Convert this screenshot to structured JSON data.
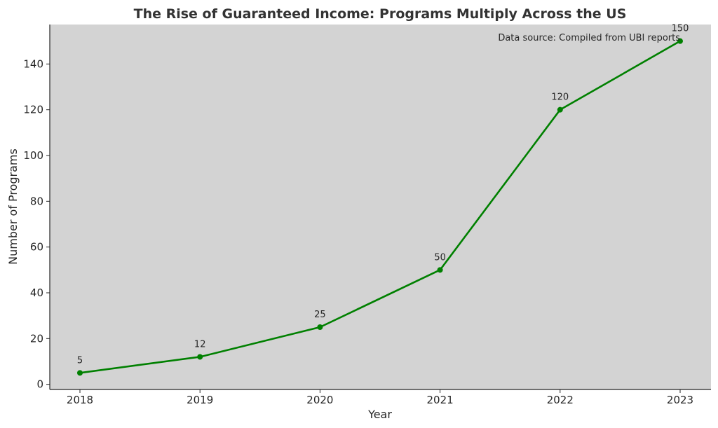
{
  "chart_data": {
    "type": "line",
    "title": "The Rise of Guaranteed Income: Programs Multiply Across the US",
    "xlabel": "Year",
    "ylabel": "Number of Programs",
    "x": [
      "2018",
      "2019",
      "2020",
      "2021",
      "2022",
      "2023"
    ],
    "series": [
      {
        "values": [
          5,
          12,
          25,
          50,
          120,
          150
        ],
        "color": "#008000"
      }
    ],
    "y_ticks": [
      "0",
      "20",
      "40",
      "60",
      "80",
      "100",
      "120",
      "140"
    ],
    "data_labels": [
      "5",
      "12",
      "25",
      "50",
      "120",
      "150"
    ],
    "ylim": [
      -2.25,
      157.25
    ],
    "grid": false,
    "background_color": "#d3d3d3",
    "annotation": "Data source: Compiled from UBI reports"
  }
}
